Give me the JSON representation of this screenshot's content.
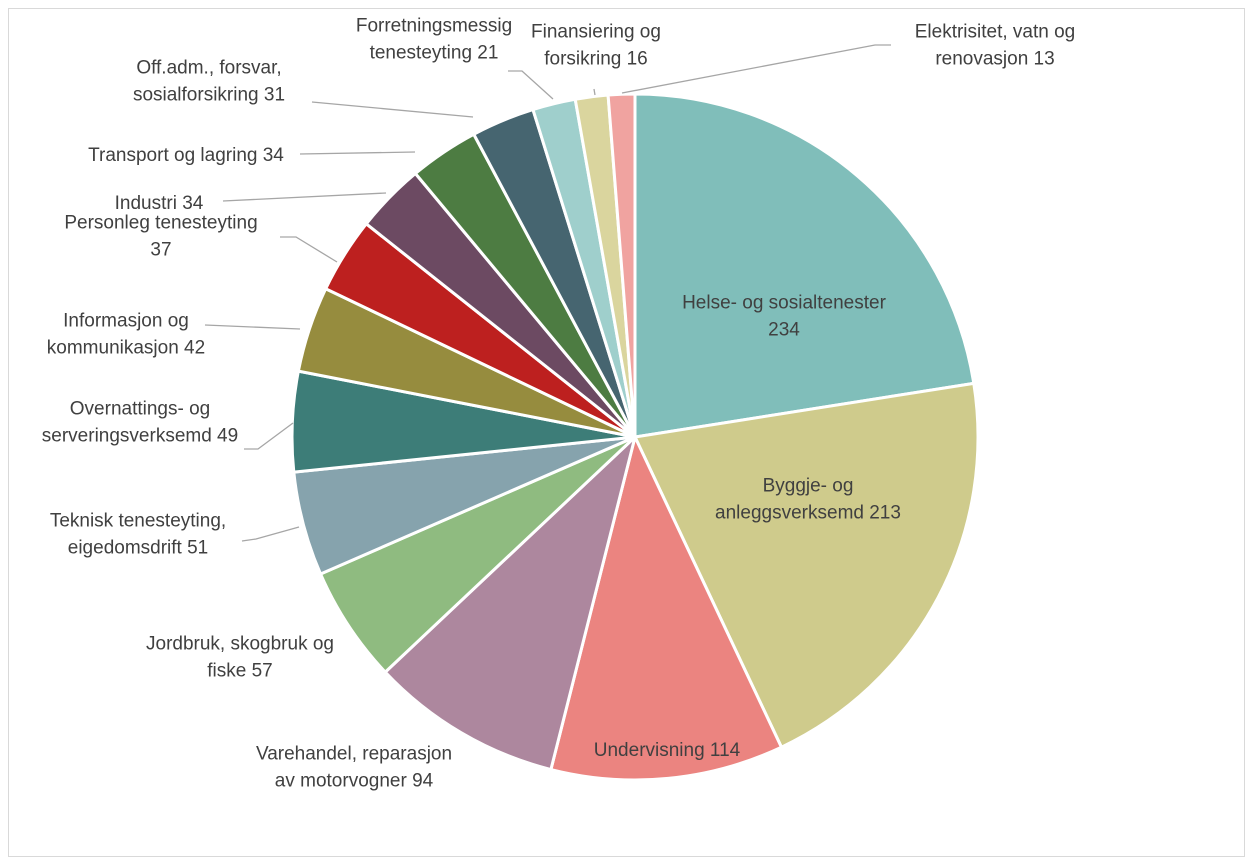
{
  "chart_data": {
    "type": "pie",
    "title": "",
    "start_angle_deg": 0,
    "direction": "clockwise",
    "slices": [
      {
        "label_lines": [
          "Helse- og sosialtenester",
          "234"
        ],
        "value": 234,
        "color": "#80BEBA",
        "label_placement": "inside"
      },
      {
        "label_lines": [
          "Byggje- og",
          "anleggsverksemd 213"
        ],
        "value": 213,
        "color": "#CFCB8C",
        "label_placement": "inside"
      },
      {
        "label_lines": [
          "Undervisning 114"
        ],
        "value": 114,
        "color": "#EB8480",
        "label_placement": "inside"
      },
      {
        "label_lines": [
          "Varehandel, reparasjon",
          "av motorvogner 94"
        ],
        "value": 94,
        "color": "#AD879E",
        "label_placement": "outside"
      },
      {
        "label_lines": [
          "Jordbruk, skogbruk og",
          "fiske 57"
        ],
        "value": 57,
        "color": "#8FBB80",
        "label_placement": "outside"
      },
      {
        "label_lines": [
          "Teknisk tenesteyting,",
          "eigedomsdrift 51"
        ],
        "value": 51,
        "color": "#86A3AD",
        "label_placement": "outside"
      },
      {
        "label_lines": [
          "Overnattings- og",
          "serveringsverksemd 49"
        ],
        "value": 49,
        "color": "#3D7D78",
        "label_placement": "outside"
      },
      {
        "label_lines": [
          "Informasjon og",
          "kommunikasjon 42"
        ],
        "value": 42,
        "color": "#968C3E",
        "label_placement": "outside"
      },
      {
        "label_lines": [
          "Personleg tenesteyting",
          "37"
        ],
        "value": 37,
        "color": "#BD201F",
        "label_placement": "outside"
      },
      {
        "label_lines": [
          "Industri 34"
        ],
        "value": 34,
        "color": "#6C4A62",
        "label_placement": "outside"
      },
      {
        "label_lines": [
          "Transport og lagring 34"
        ],
        "value": 34,
        "color": "#4D7C42",
        "label_placement": "outside"
      },
      {
        "label_lines": [
          "Off.adm., forsvar,",
          "sosialforsikring 31"
        ],
        "value": 31,
        "color": "#466570",
        "label_placement": "outside"
      },
      {
        "label_lines": [
          "Forretningsmessig",
          "tenesteyting 21"
        ],
        "value": 21,
        "color": "#9FCFCC",
        "label_placement": "outside"
      },
      {
        "label_lines": [
          "Finansiering og",
          "forsikring 16"
        ],
        "value": 16,
        "color": "#DAD59E",
        "label_placement": "outside"
      },
      {
        "label_lines": [
          "Elektrisitet, vatn og",
          "renovasjon 13"
        ],
        "value": 13,
        "color": "#F0A3A0",
        "label_placement": "outside"
      }
    ],
    "leader_line_color": "#A6A6A6",
    "label_color": "#404040",
    "legend": "none"
  }
}
